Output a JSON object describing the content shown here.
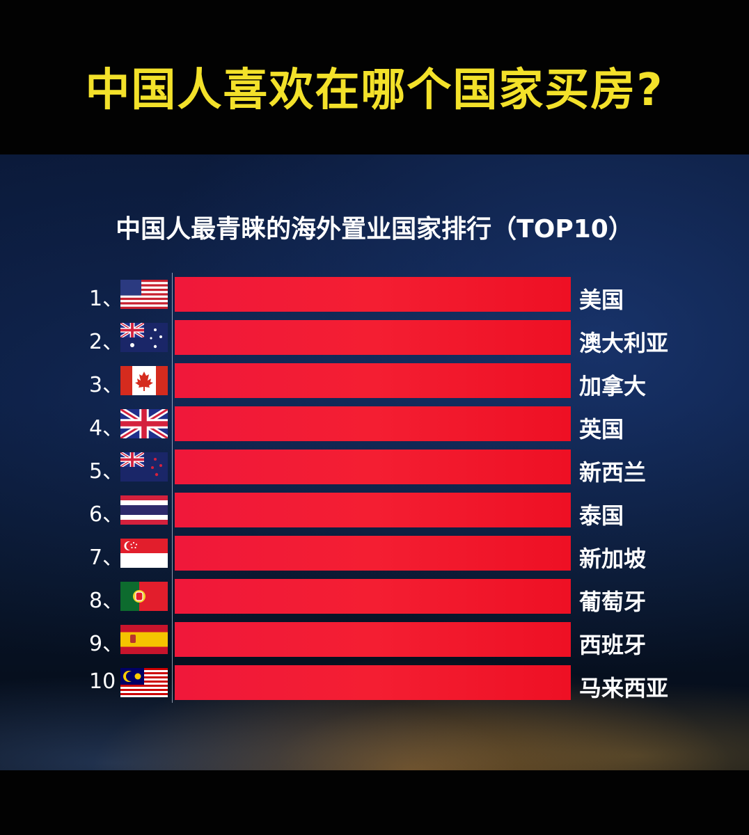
{
  "chart_data": {
    "type": "bar",
    "orientation": "horizontal",
    "title": "中国人喜欢在哪个国家买房?",
    "subtitle": "中国人最青睐的海外置业国家排行（TOP10）",
    "categories": [
      "美国",
      "澳大利亚",
      "加拿大",
      "英国",
      "新西兰",
      "泰国",
      "新加坡",
      "葡萄牙",
      "西班牙",
      "马来西亚"
    ],
    "ranks": [
      "1、",
      "2、",
      "3、",
      "4、",
      "5、",
      "6、",
      "7、",
      "8、",
      "9、",
      "10"
    ],
    "flags": [
      "us-flag-icon",
      "australia-flag-icon",
      "canada-flag-icon",
      "uk-flag-icon",
      "new-zealand-flag-icon",
      "thailand-flag-icon",
      "singapore-flag-icon",
      "portugal-flag-icon",
      "spain-flag-icon",
      "malaysia-flag-icon"
    ],
    "values": [
      1,
      1,
      1,
      1,
      1,
      1,
      1,
      1,
      1,
      1
    ],
    "xlim": [
      0,
      1
    ],
    "bar_color": "#f0183a",
    "title_color": "#f3e12a",
    "grid": false,
    "legend": "none"
  }
}
